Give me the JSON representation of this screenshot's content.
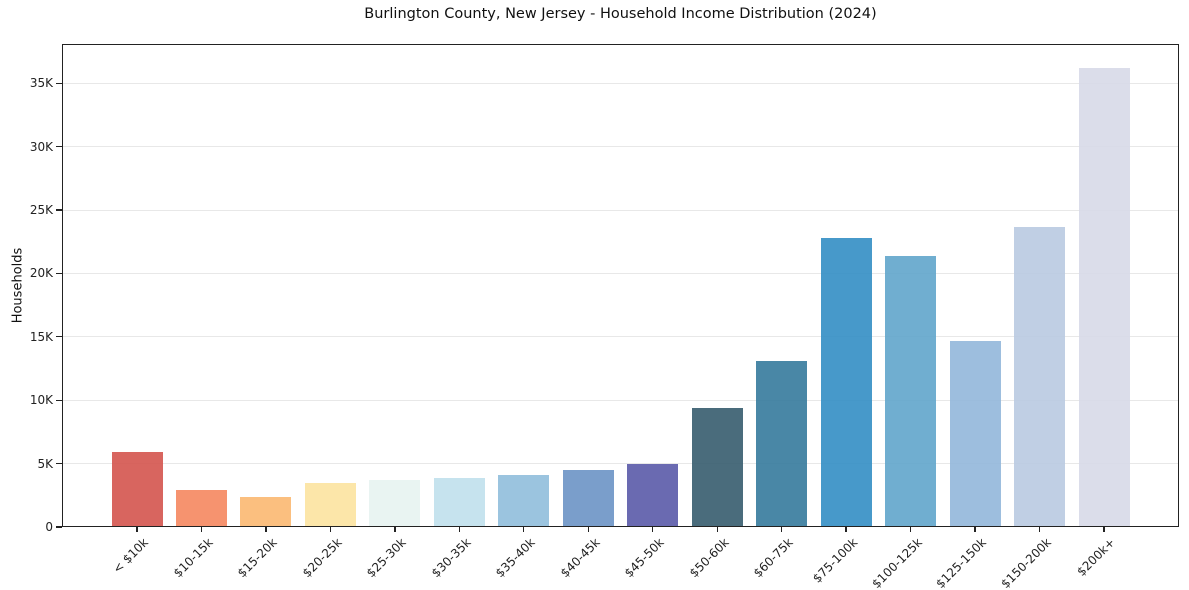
{
  "figure": {
    "title": "Burlington County, New Jersey - Household Income Distribution (2024)",
    "y_axis_label": "Households"
  },
  "chart_data": {
    "type": "bar",
    "title": "Burlington County, New Jersey - Household Income Distribution (2024)",
    "xlabel": "",
    "ylabel": "Households",
    "categories": [
      "< $10k",
      "$10-15k",
      "$15-20k",
      "$20-25k",
      "$25-30k",
      "$30-35k",
      "$35-40k",
      "$40-45k",
      "$45-50k",
      "$50-60k",
      "$60-75k",
      "$75-100k",
      "$100-125k",
      "$125-150k",
      "$150-200k",
      "$200k+"
    ],
    "values": [
      5900,
      2950,
      2400,
      3500,
      3700,
      3850,
      4100,
      4500,
      5000,
      9350,
      13100,
      22800,
      21400,
      14700,
      23650,
      36200
    ],
    "bar_colors": [
      "#d4544e",
      "#f5875f",
      "#fbb871",
      "#fce3a0",
      "#e7f3f1",
      "#c0e0ec",
      "#90bedb",
      "#6b93c5",
      "#5a5aa9",
      "#365c6e",
      "#357a9c",
      "#338ec4",
      "#60a5cb",
      "#92b7da",
      "#b9cae1",
      "#d7d9e8"
    ],
    "ylim": [
      0,
      38100
    ],
    "yticks": [
      0,
      5000,
      10000,
      15000,
      20000,
      25000,
      30000,
      35000
    ],
    "ytick_labels": [
      "0",
      "5K",
      "10K",
      "15K",
      "20K",
      "25K",
      "30K",
      "35K"
    ],
    "grid": "horizontal-light",
    "legend": "none",
    "colors": {
      "grid": "#e8e8e8",
      "spine": "#222222",
      "text": "#111111",
      "background": "#ffffff"
    }
  }
}
